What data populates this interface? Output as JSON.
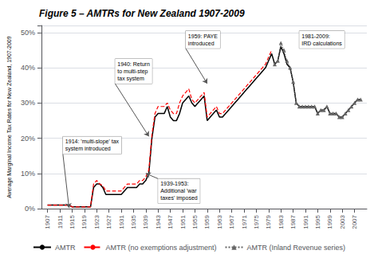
{
  "chart_data": {
    "type": "line",
    "title": "Figure 5 – AMTRs for New Zealand 1907-2009",
    "ylabel": "Average Marginal Income Tax Rates for New Zealand, 1907-2009",
    "xlim": [
      1905,
      2011
    ],
    "xticks": [
      1907,
      1911,
      1915,
      1919,
      1923,
      1927,
      1931,
      1935,
      1939,
      1943,
      1947,
      1951,
      1955,
      1959,
      1963,
      1967,
      1971,
      1975,
      1979,
      1983,
      1987,
      1991,
      1995,
      1999,
      2003,
      2007
    ],
    "ylim": [
      0,
      0.52
    ],
    "yticks": [
      {
        "value": 0,
        "label": "0%"
      },
      {
        "value": 0.1,
        "label": "10%"
      },
      {
        "value": 0.2,
        "label": "20%"
      },
      {
        "value": 0.3,
        "label": "30%"
      },
      {
        "value": 0.4,
        "label": "40%"
      },
      {
        "value": 0.5,
        "label": "50%"
      }
    ],
    "grid": true,
    "legend": "bottom",
    "series": [
      {
        "name": "AMTR",
        "color": "#000000",
        "line_style": "solid",
        "x": [
          1907,
          1908,
          1909,
          1910,
          1911,
          1912,
          1913,
          1914,
          1915,
          1916,
          1917,
          1918,
          1919,
          1920,
          1921,
          1922,
          1923,
          1924,
          1925,
          1926,
          1927,
          1928,
          1929,
          1930,
          1931,
          1932,
          1933,
          1934,
          1935,
          1936,
          1937,
          1938,
          1939,
          1940,
          1941,
          1942,
          1943,
          1944,
          1945,
          1946,
          1947,
          1948,
          1949,
          1950,
          1951,
          1952,
          1953,
          1954,
          1955,
          1956,
          1957,
          1958,
          1959,
          1960,
          1961,
          1962,
          1963,
          1964,
          1965,
          1966,
          1967,
          1968,
          1969,
          1970,
          1971,
          1972,
          1973,
          1974,
          1975,
          1976,
          1977,
          1978,
          1979,
          1980,
          1981,
          1982,
          1983,
          1984,
          1985,
          1986,
          1987,
          1988,
          1989,
          1990,
          1991,
          1992,
          1993,
          1994,
          1995,
          1996,
          1997,
          1998,
          1999,
          2000,
          2001,
          2002,
          2003,
          2004,
          2005,
          2006,
          2007,
          2008,
          2009
        ],
        "values": [
          0.01,
          0.01,
          0.01,
          0.01,
          0.01,
          0.01,
          0.01,
          0.01,
          0.005,
          0.005,
          0.005,
          0.005,
          0.005,
          0.005,
          0.005,
          0.06,
          0.07,
          0.07,
          0.06,
          0.04,
          0.04,
          0.04,
          0.04,
          0.04,
          0.04,
          0.05,
          0.06,
          0.06,
          0.06,
          0.06,
          0.07,
          0.07,
          0.08,
          0.1,
          0.2,
          0.26,
          0.27,
          0.27,
          0.27,
          0.29,
          0.26,
          0.25,
          0.25,
          0.27,
          0.3,
          0.31,
          0.32,
          0.3,
          0.29,
          0.3,
          0.31,
          0.32,
          0.25,
          0.26,
          0.27,
          0.28,
          0.26,
          0.26,
          0.27,
          0.28,
          0.29,
          0.3,
          0.31,
          0.32,
          0.33,
          0.34,
          0.35,
          0.36,
          0.37,
          0.38,
          0.39,
          0.4,
          0.42,
          0.44,
          0.41,
          0.42,
          0.46,
          0.44,
          0.41,
          0.4,
          0.36,
          0.3,
          0.29,
          0.29,
          0.29,
          0.29,
          0.29,
          0.29,
          0.27,
          0.28,
          0.28,
          0.29,
          0.27,
          0.27,
          0.27,
          0.26,
          0.26,
          0.27,
          0.28,
          0.29,
          0.3,
          0.31,
          0.31
        ]
      },
      {
        "name": "AMTR (no exemptions adjustment)",
        "color": "#ff0000",
        "line_style": "dashed",
        "x": [
          1907,
          1908,
          1909,
          1910,
          1911,
          1912,
          1913,
          1914,
          1915,
          1916,
          1917,
          1918,
          1919,
          1920,
          1921,
          1922,
          1923,
          1924,
          1925,
          1926,
          1927,
          1928,
          1929,
          1930,
          1931,
          1932,
          1933,
          1934,
          1935,
          1936,
          1937,
          1938,
          1939,
          1940,
          1941,
          1942,
          1943,
          1944,
          1945,
          1946,
          1947,
          1948,
          1949,
          1950,
          1951,
          1952,
          1953,
          1954,
          1955,
          1956,
          1957,
          1958,
          1959,
          1960,
          1961,
          1962,
          1963,
          1964,
          1965,
          1966,
          1967,
          1968,
          1969,
          1970,
          1971,
          1972,
          1973,
          1974,
          1975,
          1976,
          1977,
          1978,
          1979,
          1980
        ],
        "values": [
          0.01,
          0.01,
          0.01,
          0.01,
          0.01,
          0.01,
          0.01,
          0.01,
          0.005,
          0.005,
          0.005,
          0.005,
          0.005,
          0.005,
          0.005,
          0.07,
          0.08,
          0.07,
          0.065,
          0.05,
          0.05,
          0.05,
          0.05,
          0.05,
          0.05,
          0.06,
          0.07,
          0.07,
          0.07,
          0.07,
          0.08,
          0.08,
          0.09,
          0.11,
          0.21,
          0.27,
          0.29,
          0.29,
          0.29,
          0.3,
          0.28,
          0.27,
          0.27,
          0.3,
          0.32,
          0.33,
          0.34,
          0.31,
          0.3,
          0.31,
          0.32,
          0.33,
          0.26,
          0.27,
          0.28,
          0.29,
          0.27,
          0.27,
          0.28,
          0.29,
          0.3,
          0.31,
          0.32,
          0.33,
          0.34,
          0.35,
          0.36,
          0.37,
          0.38,
          0.39,
          0.4,
          0.41,
          0.43,
          0.45
        ]
      },
      {
        "name": "AMTR (Inland Revenue series)",
        "color": "#666666",
        "line_style": "dotted",
        "marker": "triangle",
        "x": [
          1981,
          1982,
          1983,
          1984,
          1985,
          1986,
          1987,
          1988,
          1989,
          1990,
          1991,
          1992,
          1993,
          1994,
          1995,
          1996,
          1997,
          1998,
          1999,
          2000,
          2001,
          2002,
          2003,
          2004,
          2005,
          2006,
          2007,
          2008,
          2009
        ],
        "values": [
          0.41,
          0.42,
          0.47,
          0.45,
          0.42,
          0.4,
          0.36,
          0.3,
          0.29,
          0.29,
          0.29,
          0.29,
          0.29,
          0.29,
          0.27,
          0.28,
          0.28,
          0.29,
          0.27,
          0.27,
          0.27,
          0.26,
          0.26,
          0.27,
          0.28,
          0.29,
          0.3,
          0.31,
          0.31
        ]
      }
    ],
    "annotations": [
      {
        "text": "1914: 'multi-slope' tax\nsystem introduced",
        "x": 1914,
        "y": 0.002,
        "text_x": 1912,
        "text_y": 0.155
      },
      {
        "text": "1940: Return\nto multi-step\ntax system",
        "x": 1940,
        "y": 0.205,
        "text_x": 1929,
        "text_y": 0.355
      },
      {
        "text": "1939-1953:\nAdditional 'war\ntaxes' imposed",
        "x": 1939,
        "y": 0.1,
        "text_x": 1943,
        "text_y": 0.085
      },
      {
        "text": "1959: PAYE\nintroduced",
        "x": 1959,
        "y": 0.355,
        "text_x": 1952,
        "text_y": 0.455
      },
      {
        "text": "1981-2009:\nIRD calculations",
        "text_x": 1989,
        "text_y": 0.455
      }
    ]
  }
}
